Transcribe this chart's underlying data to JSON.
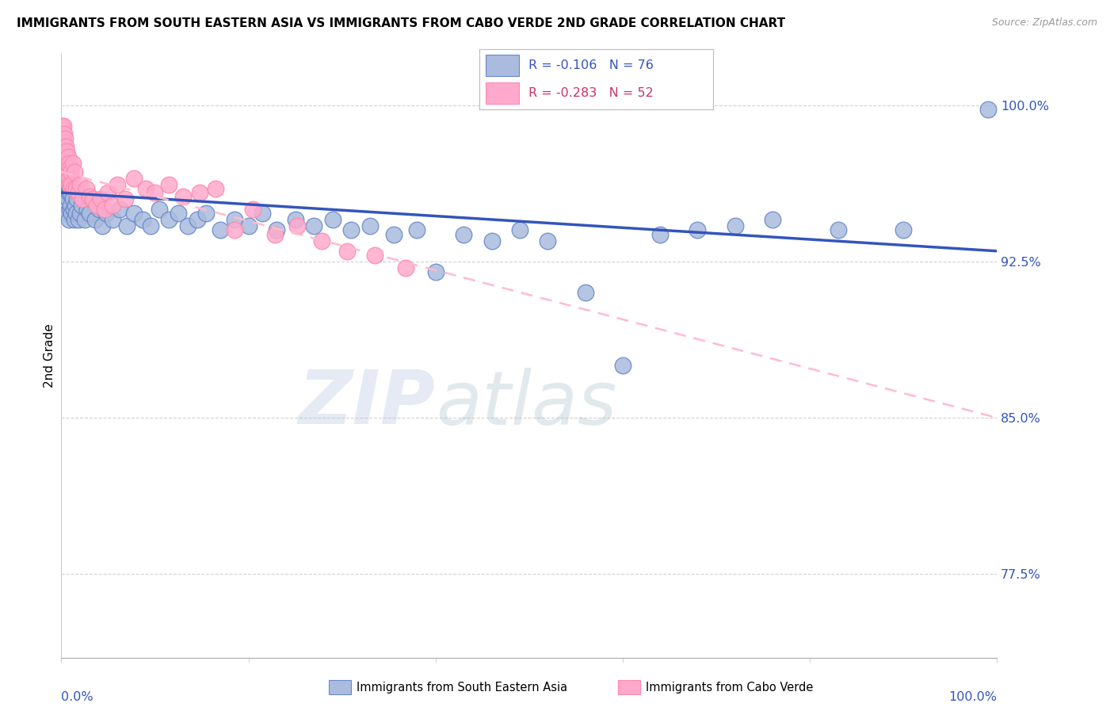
{
  "title": "IMMIGRANTS FROM SOUTH EASTERN ASIA VS IMMIGRANTS FROM CABO VERDE 2ND GRADE CORRELATION CHART",
  "source": "Source: ZipAtlas.com",
  "ylabel": "2nd Grade",
  "y_tick_labels": [
    "77.5%",
    "85.0%",
    "92.5%",
    "100.0%"
  ],
  "y_tick_values": [
    0.775,
    0.85,
    0.925,
    1.0
  ],
  "xlim": [
    0.0,
    1.0
  ],
  "ylim": [
    0.735,
    1.025
  ],
  "legend_blue_label": "R = -0.106   N = 76",
  "legend_pink_label": "R = -0.283   N = 52",
  "xlabel_bottom_blue": "Immigrants from South Eastern Asia",
  "xlabel_bottom_pink": "Immigrants from Cabo Verde",
  "blue_color": "#AABBDD",
  "pink_color": "#FFAACC",
  "blue_edge_color": "#6688CC",
  "pink_edge_color": "#FF88AA",
  "blue_line_color": "#3355BB",
  "pink_line_color": "#FFBBCC",
  "watermark_zip": "ZIP",
  "watermark_atlas": "atlas",
  "blue_scatter_x": [
    0.001,
    0.001,
    0.002,
    0.002,
    0.003,
    0.003,
    0.004,
    0.004,
    0.005,
    0.005,
    0.006,
    0.006,
    0.007,
    0.007,
    0.008,
    0.008,
    0.009,
    0.009,
    0.01,
    0.01,
    0.011,
    0.012,
    0.013,
    0.014,
    0.015,
    0.016,
    0.017,
    0.018,
    0.02,
    0.022,
    0.025,
    0.028,
    0.03,
    0.033,
    0.036,
    0.04,
    0.044,
    0.048,
    0.055,
    0.062,
    0.07,
    0.078,
    0.087,
    0.095,
    0.105,
    0.115,
    0.125,
    0.135,
    0.145,
    0.155,
    0.17,
    0.185,
    0.2,
    0.215,
    0.23,
    0.25,
    0.27,
    0.29,
    0.31,
    0.33,
    0.355,
    0.38,
    0.4,
    0.43,
    0.46,
    0.49,
    0.52,
    0.56,
    0.6,
    0.64,
    0.68,
    0.72,
    0.76,
    0.83,
    0.9,
    0.99
  ],
  "blue_scatter_y": [
    0.98,
    0.975,
    0.985,
    0.965,
    0.978,
    0.96,
    0.97,
    0.968,
    0.972,
    0.958,
    0.965,
    0.948,
    0.962,
    0.955,
    0.958,
    0.945,
    0.96,
    0.95,
    0.952,
    0.958,
    0.948,
    0.955,
    0.95,
    0.945,
    0.952,
    0.948,
    0.955,
    0.945,
    0.948,
    0.952,
    0.945,
    0.95,
    0.948,
    0.955,
    0.945,
    0.95,
    0.942,
    0.948,
    0.945,
    0.95,
    0.942,
    0.948,
    0.945,
    0.942,
    0.95,
    0.945,
    0.948,
    0.942,
    0.945,
    0.948,
    0.94,
    0.945,
    0.942,
    0.948,
    0.94,
    0.945,
    0.942,
    0.945,
    0.94,
    0.942,
    0.938,
    0.94,
    0.92,
    0.938,
    0.935,
    0.94,
    0.935,
    0.91,
    0.875,
    0.938,
    0.94,
    0.942,
    0.945,
    0.94,
    0.94,
    0.998
  ],
  "pink_scatter_x": [
    0.001,
    0.001,
    0.002,
    0.002,
    0.003,
    0.003,
    0.004,
    0.004,
    0.005,
    0.005,
    0.006,
    0.006,
    0.007,
    0.007,
    0.008,
    0.008,
    0.009,
    0.009,
    0.01,
    0.011,
    0.012,
    0.013,
    0.014,
    0.016,
    0.018,
    0.02,
    0.023,
    0.027,
    0.03,
    0.034,
    0.038,
    0.042,
    0.046,
    0.05,
    0.055,
    0.06,
    0.068,
    0.078,
    0.09,
    0.1,
    0.115,
    0.13,
    0.148,
    0.165,
    0.185,
    0.205,
    0.228,
    0.252,
    0.278,
    0.305,
    0.335,
    0.368
  ],
  "pink_scatter_y": [
    0.99,
    0.985,
    0.99,
    0.982,
    0.986,
    0.98,
    0.984,
    0.978,
    0.98,
    0.975,
    0.978,
    0.972,
    0.975,
    0.968,
    0.972,
    0.965,
    0.97,
    0.962,
    0.968,
    0.962,
    0.972,
    0.96,
    0.968,
    0.96,
    0.958,
    0.962,
    0.955,
    0.96,
    0.956,
    0.955,
    0.952,
    0.955,
    0.95,
    0.958,
    0.952,
    0.962,
    0.955,
    0.965,
    0.96,
    0.958,
    0.962,
    0.956,
    0.958,
    0.96,
    0.94,
    0.95,
    0.938,
    0.942,
    0.935,
    0.93,
    0.928,
    0.922
  ],
  "blue_trend_x": [
    0.0,
    1.0
  ],
  "blue_trend_y": [
    0.958,
    0.93
  ],
  "pink_trend_x": [
    0.0,
    1.0
  ],
  "pink_trend_y": [
    0.968,
    0.85
  ]
}
